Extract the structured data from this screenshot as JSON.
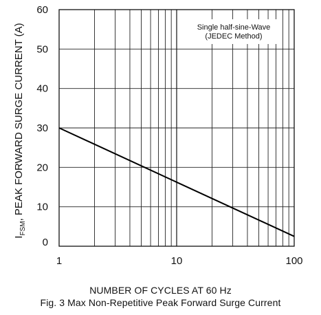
{
  "chart_data": {
    "type": "line",
    "title": "",
    "xlabel": "NUMBER OF CYCLES AT 60 Hz",
    "ylabel_prefix": "I",
    "ylabel_subscript": "FSM",
    "ylabel_rest": ", PEAK FORWARD SURGE CURRENT (A)",
    "x_scale": "log",
    "xlim": [
      1,
      100
    ],
    "ylim": [
      0,
      60
    ],
    "x_ticks": [
      "1",
      "10",
      "100"
    ],
    "y_ticks": [
      "0",
      "10",
      "20",
      "30",
      "40",
      "50",
      "60"
    ],
    "grid": true,
    "series": [
      {
        "x": [
          1,
          100
        ],
        "y": [
          30,
          2.5
        ]
      }
    ],
    "annotation_lines": [
      "Single half-sine-Wave",
      "(JEDEC Method)"
    ]
  },
  "caption": "Fig. 3  Max Non-Repetitive Peak Forward Surge Current"
}
